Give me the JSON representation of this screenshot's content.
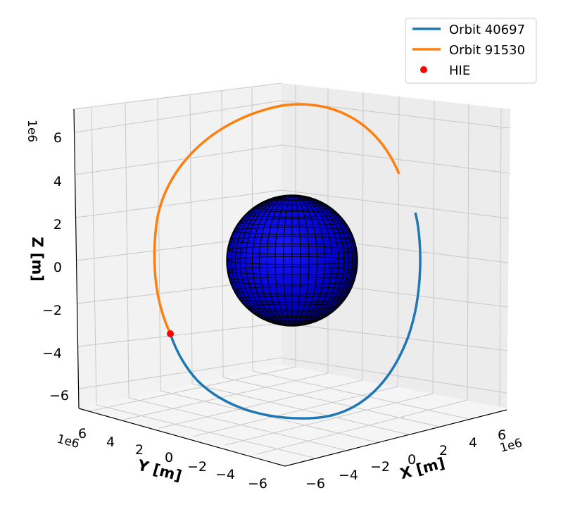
{
  "chart_data": {
    "type": "line",
    "projection": "3d",
    "title": "",
    "xlabel": "X [m]",
    "ylabel": "Y [m]",
    "zlabel": "Z [m]",
    "axis_multiplier": "1e6",
    "xlim": [
      -7,
      7
    ],
    "ylim": [
      -7,
      7
    ],
    "zlim": [
      -7,
      7
    ],
    "x_ticks": [
      "−6",
      "−4",
      "−2",
      "0",
      "2",
      "4",
      "6"
    ],
    "y_ticks": [
      "6",
      "4",
      "2",
      "0",
      "−2",
      "−4",
      "−6"
    ],
    "z_ticks": [
      "6",
      "4",
      "2",
      "0",
      "−2",
      "−4",
      "−6"
    ],
    "grid": true,
    "legend_position": "top-right",
    "series": [
      {
        "name": "Orbit 40697",
        "color": "#1f77b4",
        "kind": "line"
      },
      {
        "name": "Orbit 91530",
        "color": "#ff7f0e",
        "kind": "line"
      },
      {
        "name": "HIE",
        "color": "#ff0000",
        "kind": "point"
      }
    ],
    "body": {
      "shape": "sphere",
      "color": "#0000c8",
      "edge_color": "#000000"
    }
  }
}
